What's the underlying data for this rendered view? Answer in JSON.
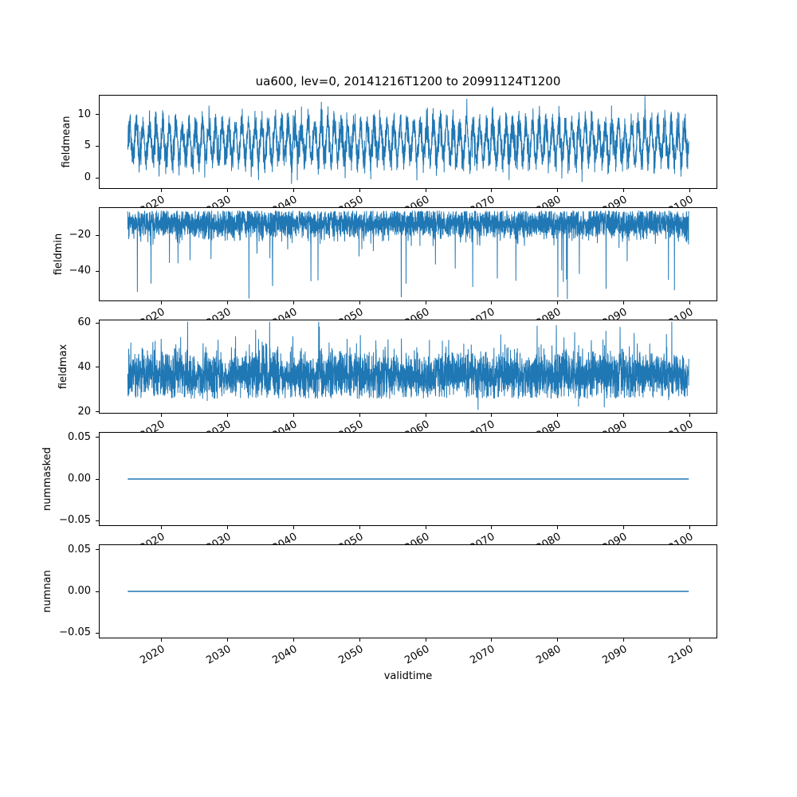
{
  "chart_data": {
    "type": "line",
    "title": "ua600, lev=0, 20141216T1200 to 20991124T1200",
    "xlabel": "validtime",
    "line_color": "#1f77b4",
    "axis_color": "#000000",
    "background": "#ffffff",
    "grid": "off",
    "legend": "none",
    "x": {
      "label": "validtime",
      "lim": [
        2010.7,
        2104.1
      ],
      "ticks": [
        2020,
        2030,
        2040,
        2050,
        2060,
        2070,
        2080,
        2090,
        2100
      ],
      "tick_labels": [
        "2020",
        "2030",
        "2040",
        "2050",
        "2060",
        "2070",
        "2080",
        "2090",
        "2100"
      ],
      "data_start_year": 2014.96,
      "data_end_year": 2099.9,
      "data_start_label": "20141216T1200",
      "data_end_label": "20991124T1200"
    },
    "subplots": [
      {
        "ylabel": "fieldmean",
        "ylim": [
          -1.6,
          12.95
        ],
        "yticks": [
          {
            "value": 0,
            "label": "0"
          },
          {
            "value": 5,
            "label": "5"
          },
          {
            "value": 10,
            "label": "10"
          }
        ],
        "line_width": 1.0,
        "series": {
          "kind": "seasonal_noise",
          "seed": 101,
          "points": 4200,
          "mean": 5.7,
          "seasonal_amplitude": 2.7,
          "season_period_years": 1,
          "noise_sd": 1.25,
          "clip_min": -0.9,
          "clip_max": 12.85,
          "observed_min": -0.8,
          "observed_max": 12.8
        }
      },
      {
        "ylabel": "fieldmin",
        "ylim": [
          -56.4,
          -4.9
        ],
        "yticks": [
          {
            "value": -40,
            "label": "−40"
          },
          {
            "value": -20,
            "label": "−20"
          }
        ],
        "line_width": 1.0,
        "series": {
          "kind": "noise_spikes",
          "seed": 202,
          "points": 4200,
          "mean": -13.5,
          "noise_sd": 4.0,
          "soft_max": -6.5,
          "spike_direction": "down",
          "spike_prob": 0.015,
          "spike_mag_min": 8,
          "spike_mag_max": 38,
          "clip_min": -55.5,
          "clip_max": -5.0,
          "observed_dense_band": [
            -25,
            -7
          ],
          "observed_min": -55
        }
      },
      {
        "ylabel": "fieldmax",
        "ylim": [
          19.5,
          61.2
        ],
        "yticks": [
          {
            "value": 20,
            "label": "20"
          },
          {
            "value": 40,
            "label": "40"
          },
          {
            "value": 60,
            "label": "60"
          }
        ],
        "line_width": 1.0,
        "series": {
          "kind": "noise_spikes",
          "seed": 303,
          "points": 4200,
          "mean": 36.5,
          "noise_sd": 5.0,
          "soft_min": 26.0,
          "spike_direction": "up",
          "spike_prob": 0.02,
          "spike_mag_min": 5,
          "spike_mag_max": 20,
          "down_spike_prob": 0.008,
          "down_spike_mag_min": 4,
          "down_spike_mag_max": 12,
          "clip_min": 20.5,
          "clip_max": 60.5,
          "observed_dense_band": [
            27,
            48
          ],
          "observed_max": 60.5
        }
      },
      {
        "ylabel": "nummasked",
        "ylim": [
          -0.0557,
          0.0557
        ],
        "yticks": [
          {
            "value": -0.05,
            "label": "−0.05"
          },
          {
            "value": 0,
            "label": "0.00"
          },
          {
            "value": 0.05,
            "label": "0.05"
          }
        ],
        "line_width": 1.6,
        "series": {
          "kind": "constant",
          "value": 0.0
        }
      },
      {
        "ylabel": "numnan",
        "ylim": [
          -0.0557,
          0.0557
        ],
        "yticks": [
          {
            "value": -0.05,
            "label": "−0.05"
          },
          {
            "value": 0,
            "label": "0.00"
          },
          {
            "value": 0.05,
            "label": "0.05"
          }
        ],
        "line_width": 1.6,
        "series": {
          "kind": "constant",
          "value": 0.0
        }
      }
    ]
  }
}
